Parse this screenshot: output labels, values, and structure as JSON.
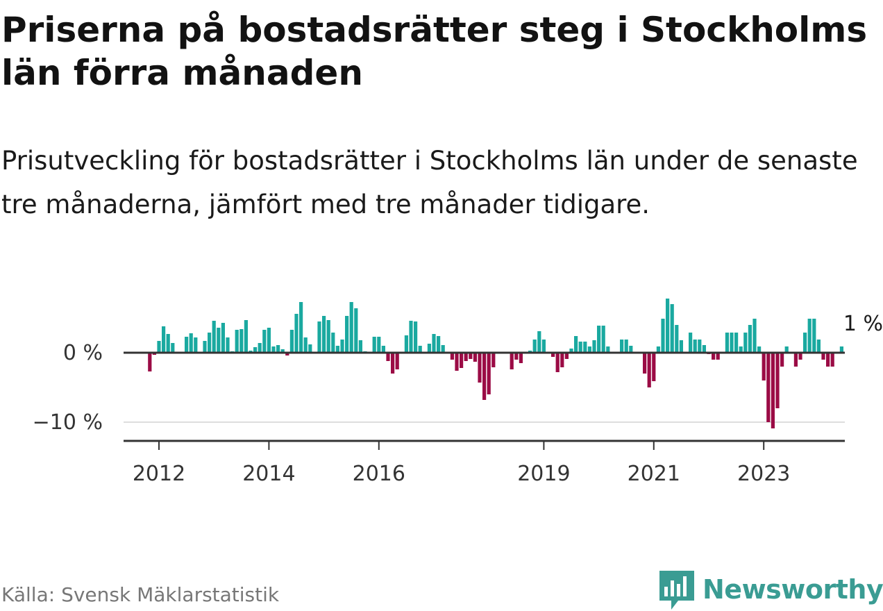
{
  "header": {
    "title": "Priserna på bostadsrätter steg i Stockholms län förra månaden",
    "subtitle": "Prisutveckling för bostadsrätter i Stockholms län under de senaste tre månaderna, jämfört med tre månader tidigare."
  },
  "footer": {
    "source": "Källa: Svensk Mäklarstatistik",
    "brand": "Newsworthy"
  },
  "colors": {
    "positive": "#1aa9a0",
    "negative": "#9b0b45",
    "axis": "#333333",
    "grid": "#dddddd",
    "brand": "#3a9c93"
  },
  "chart_data": {
    "type": "bar",
    "title": "Priserna på bostadsrätter steg i Stockholms län förra månaden",
    "xlabel": "",
    "ylabel": "",
    "x_start": "2011-11",
    "ylim": [
      -12.5,
      10
    ],
    "y_ticks": [
      {
        "value": 0,
        "label": "0 %"
      },
      {
        "value": -10,
        "label": "−10 %"
      }
    ],
    "x_ticks": [
      {
        "year": 2012,
        "label": "2012"
      },
      {
        "year": 2014,
        "label": "2014"
      },
      {
        "year": 2016,
        "label": "2016"
      },
      {
        "year": 2019,
        "label": "2019"
      },
      {
        "year": 2021,
        "label": "2021"
      },
      {
        "year": 2023,
        "label": "2023"
      }
    ],
    "last_value_label": "1 %",
    "values": [
      -2.7,
      -0.3,
      1.7,
      3.8,
      2.7,
      1.4,
      0.1,
      0,
      2.3,
      2.8,
      2.2,
      0.1,
      1.7,
      2.9,
      4.6,
      3.6,
      4.3,
      2.2,
      0.2,
      3.3,
      3.4,
      4.7,
      0.3,
      0.8,
      1.4,
      3.3,
      3.6,
      0.9,
      1.1,
      0.5,
      -0.4,
      3.3,
      5.6,
      7.3,
      2.2,
      1.2,
      0.1,
      4.5,
      5.3,
      4.7,
      2.9,
      1.0,
      1.9,
      5.3,
      7.3,
      6.4,
      1.8,
      0.2,
      0,
      2.3,
      2.3,
      1.0,
      -1.2,
      -3.0,
      -2.4,
      0,
      2.5,
      4.6,
      4.5,
      1.0,
      0,
      1.3,
      2.7,
      2.4,
      1.1,
      0,
      -1.0,
      -2.6,
      -2.2,
      -1.2,
      -0.9,
      -1.3,
      -4.3,
      -6.8,
      -6.0,
      -2.1,
      0,
      0,
      -0.1,
      -2.4,
      -1.0,
      -1.5,
      0,
      0.3,
      1.9,
      3.1,
      1.9,
      0,
      -0.6,
      -2.8,
      -2.1,
      -0.9,
      0.6,
      2.4,
      1.6,
      1.6,
      0.9,
      1.8,
      3.9,
      3.9,
      0.9,
      0,
      0,
      1.9,
      1.9,
      1.0,
      -0.1,
      0,
      -3.0,
      -5.0,
      -4.1,
      0.9,
      4.9,
      7.8,
      7.0,
      4.0,
      1.8,
      0,
      2.9,
      1.9,
      1.9,
      1.1,
      -0.2,
      -1.0,
      -1.0,
      0,
      2.9,
      2.9,
      2.9,
      0.9,
      2.9,
      4.0,
      4.9,
      0.9,
      -4.0,
      -10.0,
      -10.9,
      -8.0,
      -2.0,
      0.9,
      0,
      -2.0,
      -1.0,
      2.9,
      4.9,
      4.9,
      1.9,
      -1.0,
      -2.0,
      -2.0,
      0,
      0.9
    ]
  }
}
